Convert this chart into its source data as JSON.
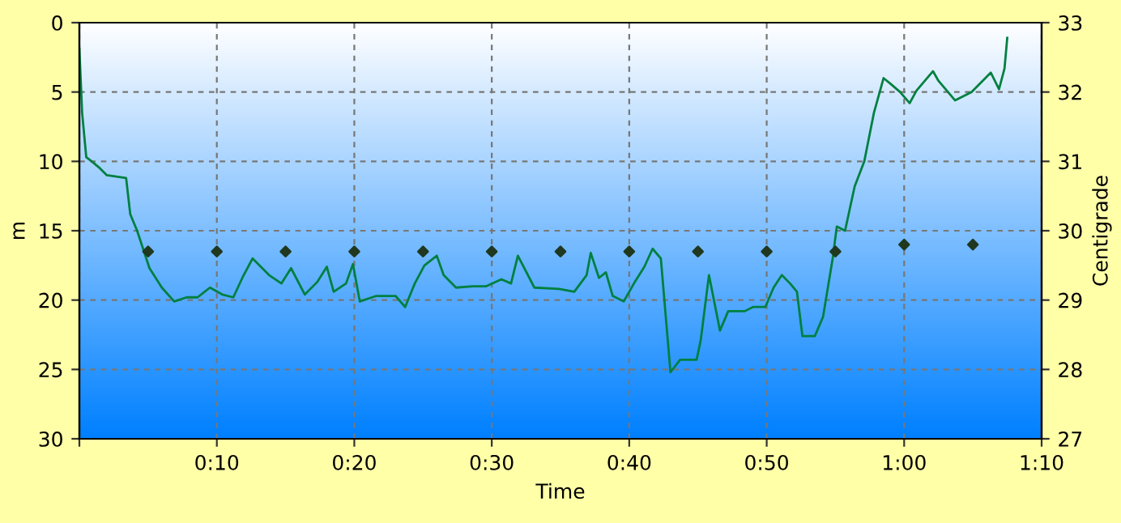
{
  "chart_data": {
    "type": "line",
    "xlabel": "Time",
    "ylabel": "m",
    "y2label": "Centigrade",
    "xlim": [
      0,
      70
    ],
    "xticks": [
      {
        "value": 0,
        "label": null
      },
      {
        "value": 10,
        "label": "0:10"
      },
      {
        "value": 20,
        "label": "0:20"
      },
      {
        "value": 30,
        "label": "0:30"
      },
      {
        "value": 40,
        "label": "0:40"
      },
      {
        "value": 50,
        "label": "0:50"
      },
      {
        "value": 60,
        "label": "1:00"
      },
      {
        "value": 70,
        "label": "1:10"
      }
    ],
    "ylim": [
      30,
      0
    ],
    "yticks": [
      0,
      5,
      10,
      15,
      20,
      25,
      30
    ],
    "y2lim": [
      27,
      33
    ],
    "y2ticks": [
      27,
      28,
      29,
      30,
      31,
      32,
      33
    ],
    "grid": true,
    "legend": false,
    "series": [
      {
        "color": "#008040",
        "marker": "none",
        "x": [
          0,
          0.2,
          0.5,
          0.9,
          1.5,
          2.0,
          3.4,
          3.7,
          4.2,
          5.1,
          6.0,
          6.9,
          7.8,
          8.6,
          9.5,
          10.4,
          11.2,
          11.9,
          12.6,
          13.8,
          14.7,
          15.4,
          16.4,
          17.3,
          18.0,
          18.5,
          19.4,
          19.9,
          20.4,
          21.6,
          23.0,
          23.7,
          24.4,
          25.1,
          26.0,
          26.5,
          27.4,
          28.6,
          29.6,
          30.7,
          31.4,
          31.9,
          33.1,
          34.9,
          36.0,
          36.9,
          37.2,
          37.8,
          38.3,
          38.8,
          39.6,
          40.4,
          41.1,
          41.7,
          42.3,
          43.0,
          43.7,
          44.9,
          45.2,
          45.8,
          46.6,
          47.2,
          48.4,
          49.0,
          49.9,
          50.5,
          51.1,
          51.7,
          52.2,
          52.6,
          53.5,
          54.1,
          54.8,
          55.1,
          55.7,
          56.4,
          57.1,
          57.8,
          58.5,
          59.0,
          59.7,
          60.4,
          60.9,
          62.1,
          62.5,
          63.7,
          64.9,
          66.3,
          66.9,
          67.3,
          67.5
        ],
        "values": [
          1.9,
          6.5,
          9.7,
          10,
          10.5,
          11,
          11.2,
          13.8,
          15,
          17.7,
          19.1,
          20.1,
          19.8,
          19.8,
          19.1,
          19.6,
          19.8,
          18.3,
          17,
          18.2,
          18.8,
          17.7,
          19.6,
          18.7,
          17.6,
          19.4,
          18.8,
          17.4,
          20.1,
          19.7,
          19.7,
          20.5,
          18.8,
          17.5,
          16.8,
          18.2,
          19.1,
          19,
          19,
          18.5,
          18.8,
          16.8,
          19.1,
          19.2,
          19.4,
          18.2,
          16.6,
          18.4,
          18,
          19.7,
          20.1,
          18.7,
          17.6,
          16.3,
          17,
          25.2,
          24.3,
          24.3,
          22.9,
          18.2,
          22.2,
          20.8,
          20.8,
          20.5,
          20.5,
          19.1,
          18.2,
          18.8,
          19.4,
          22.6,
          22.6,
          21.2,
          17,
          14.7,
          15,
          11.8,
          10,
          6.5,
          4,
          4.4,
          5,
          5.8,
          4.9,
          3.5,
          4.2,
          5.6,
          5,
          3.6,
          4.8,
          3.3,
          1.1
        ]
      },
      {
        "type": "scatter",
        "axis": "y2",
        "color": "#203820",
        "marker": "diamond",
        "x": [
          5,
          10,
          15,
          20,
          25,
          30,
          35,
          40,
          45,
          50,
          55,
          60,
          65
        ],
        "values": [
          29.7,
          29.7,
          29.7,
          29.7,
          29.7,
          29.7,
          29.7,
          29.7,
          29.7,
          29.7,
          29.7,
          29.8,
          29.8
        ]
      }
    ]
  }
}
